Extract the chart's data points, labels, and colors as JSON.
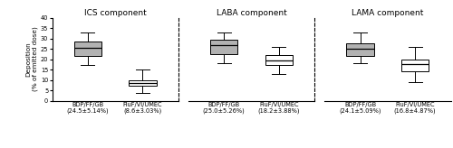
{
  "panels": [
    {
      "title": "ICS component",
      "boxes": [
        {
          "label": "BDP/FF/GB\n(24.5±5.14%)",
          "q1": 21.5,
          "median": 25.5,
          "q3": 28.5,
          "whislo": 17,
          "whishi": 33,
          "color": "#b2b2b2"
        },
        {
          "label": "FluF/VI/UMEC\n(8.6±3.03%)",
          "q1": 7.0,
          "median": 8.5,
          "q3": 10.0,
          "whislo": 3.5,
          "whishi": 15,
          "color": "#ffffff"
        }
      ]
    },
    {
      "title": "LABA component",
      "boxes": [
        {
          "label": "BDP/FF/GB\n(25.0±5.26%)",
          "q1": 22.5,
          "median": 27.0,
          "q3": 29.5,
          "whislo": 18,
          "whishi": 33,
          "color": "#b2b2b2"
        },
        {
          "label": "FluF/VI/UMEC\n(18.2±3.88%)",
          "q1": 17.0,
          "median": 19.5,
          "q3": 22.0,
          "whislo": 13,
          "whishi": 26,
          "color": "#ffffff"
        }
      ]
    },
    {
      "title": "LAMA component",
      "boxes": [
        {
          "label": "BDP/FF/GB\n(24.1±5.09%)",
          "q1": 21.5,
          "median": 25.0,
          "q3": 27.5,
          "whislo": 18,
          "whishi": 33,
          "color": "#b2b2b2"
        },
        {
          "label": "FluF/VI/UMEC\n(16.8±4.87%)",
          "q1": 14.0,
          "median": 17.5,
          "q3": 20.0,
          "whislo": 9,
          "whishi": 26,
          "color": "#ffffff"
        }
      ]
    }
  ],
  "ylim": [
    0,
    40
  ],
  "yticks": [
    0,
    5,
    10,
    15,
    20,
    25,
    30,
    35,
    40
  ],
  "ylabel": "Deposition\n(% of emitted dose)",
  "figsize": [
    5.0,
    1.64
  ],
  "dpi": 100,
  "tick_fontsize": 4.8,
  "label_fontsize": 5.2,
  "title_fontsize": 6.5
}
